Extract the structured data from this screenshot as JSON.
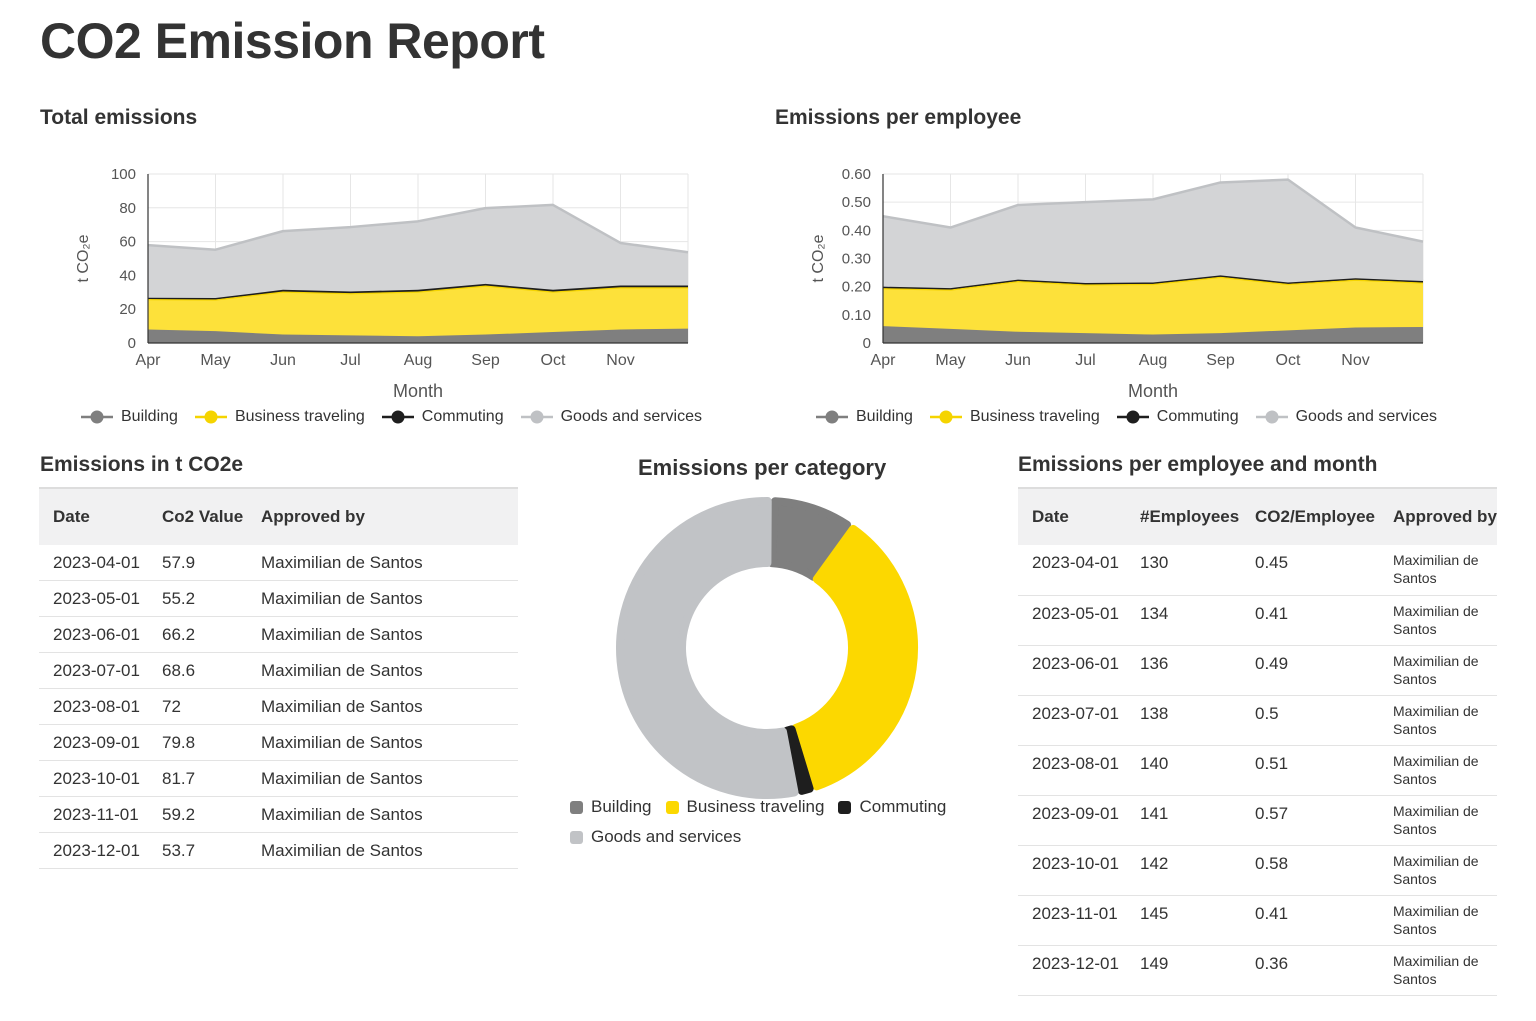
{
  "page": {
    "title": "CO2 Emission Report"
  },
  "colors": {
    "building": "#7f7f7f",
    "business_traveling": "#fde13a",
    "business_line": "#f5d400",
    "commuting": "#1e1e1e",
    "goods": "#d3d4d6",
    "goods_line": "#bfc1c4",
    "grid": "#e6e6e6"
  },
  "charts": {
    "total": {
      "title": "Total emissions"
    },
    "per_employee": {
      "title": "Emissions per employee"
    },
    "donut": {
      "title": "Emissions per category"
    }
  },
  "chart_data": [
    {
      "id": "total",
      "type": "area",
      "stacked": true,
      "title": "Total emissions",
      "xlabel": "Month",
      "ylabel": "t CO₂e",
      "categories": [
        "Apr",
        "May",
        "Jun",
        "Jul",
        "Aug",
        "Sep",
        "Oct",
        "Nov",
        "Dec"
      ],
      "x_tick_labels": [
        "Apr",
        "May",
        "Jun",
        "Jul",
        "Aug",
        "Sep",
        "Oct",
        "Nov"
      ],
      "ylim": [
        0,
        100
      ],
      "yticks": [
        "0",
        "20",
        "40",
        "60",
        "80",
        "100"
      ],
      "series": [
        {
          "name": "Building",
          "key": "building",
          "values": [
            8,
            7,
            5,
            4.5,
            4,
            5,
            6.5,
            8,
            8.5
          ]
        },
        {
          "name": "Business traveling",
          "key": "business_traveling",
          "values": [
            18,
            18.8,
            25.5,
            25,
            26.5,
            29,
            24,
            25,
            24.5
          ]
        },
        {
          "name": "Commuting",
          "key": "commuting",
          "values": [
            0.8,
            0.8,
            1,
            1,
            1,
            1,
            1,
            1,
            1
          ]
        },
        {
          "name": "Goods and services",
          "key": "goods",
          "values": [
            31.1,
            28.6,
            34.7,
            38.1,
            40.5,
            44.8,
            50.2,
            25.2,
            19.7
          ]
        }
      ],
      "legend": [
        "Building",
        "Business traveling",
        "Commuting",
        "Goods and services"
      ]
    },
    {
      "id": "per_employee",
      "type": "area",
      "stacked": true,
      "title": "Emissions per employee",
      "xlabel": "Month",
      "ylabel": "t CO₂e",
      "categories": [
        "Apr",
        "May",
        "Jun",
        "Jul",
        "Aug",
        "Sep",
        "Oct",
        "Nov",
        "Dec"
      ],
      "x_tick_labels": [
        "Apr",
        "May",
        "Jun",
        "Jul",
        "Aug",
        "Sep",
        "Oct",
        "Nov"
      ],
      "ylim": [
        0,
        0.6
      ],
      "yticks": [
        "0",
        "0.10",
        "0.20",
        "0.30",
        "0.40",
        "0.50",
        "0.60"
      ],
      "series": [
        {
          "name": "Building",
          "key": "building",
          "values": [
            0.06,
            0.05,
            0.04,
            0.035,
            0.03,
            0.035,
            0.045,
            0.055,
            0.057
          ]
        },
        {
          "name": "Business traveling",
          "key": "business_traveling",
          "values": [
            0.135,
            0.14,
            0.18,
            0.173,
            0.18,
            0.2,
            0.165,
            0.17,
            0.158
          ]
        },
        {
          "name": "Commuting",
          "key": "commuting",
          "values": [
            0.005,
            0.005,
            0.005,
            0.005,
            0.005,
            0.005,
            0.005,
            0.005,
            0.005
          ]
        },
        {
          "name": "Goods and services",
          "key": "goods",
          "values": [
            0.25,
            0.215,
            0.265,
            0.287,
            0.295,
            0.33,
            0.365,
            0.18,
            0.14
          ]
        }
      ],
      "legend": [
        "Building",
        "Business traveling",
        "Commuting",
        "Goods and services"
      ]
    },
    {
      "id": "category",
      "type": "pie",
      "donut": true,
      "title": "Emissions per category",
      "slices": [
        {
          "name": "Building",
          "key": "building",
          "value": 54
        },
        {
          "name": "Business traveling",
          "key": "business_traveling",
          "value": 210
        },
        {
          "name": "Commuting",
          "key": "commuting",
          "value": 10
        },
        {
          "name": "Goods and services",
          "key": "goods",
          "value": 320
        }
      ],
      "legend": [
        "Building",
        "Business traveling",
        "Commuting",
        "Goods and services"
      ]
    }
  ],
  "table_emissions": {
    "title": "Emissions in t CO2e",
    "headers": [
      "Date",
      "Co2 Value",
      "Approved by"
    ],
    "rows": [
      [
        "2023-04-01",
        "57.9",
        "Maximilian de Santos"
      ],
      [
        "2023-05-01",
        "55.2",
        "Maximilian de Santos"
      ],
      [
        "2023-06-01",
        "66.2",
        "Maximilian de Santos"
      ],
      [
        "2023-07-01",
        "68.6",
        "Maximilian de Santos"
      ],
      [
        "2023-08-01",
        "72",
        "Maximilian de Santos"
      ],
      [
        "2023-09-01",
        "79.8",
        "Maximilian de Santos"
      ],
      [
        "2023-10-01",
        "81.7",
        "Maximilian de Santos"
      ],
      [
        "2023-11-01",
        "59.2",
        "Maximilian de Santos"
      ],
      [
        "2023-12-01",
        "53.7",
        "Maximilian de Santos"
      ]
    ]
  },
  "table_employee": {
    "title": "Emissions per employee and month",
    "headers": [
      "Date",
      "#Employees",
      "CO2/Employee",
      "Approved by"
    ],
    "rows": [
      [
        "2023-04-01",
        "130",
        "0.45",
        "Maximilian de Santos"
      ],
      [
        "2023-05-01",
        "134",
        "0.41",
        "Maximilian de Santos"
      ],
      [
        "2023-06-01",
        "136",
        "0.49",
        "Maximilian de Santos"
      ],
      [
        "2023-07-01",
        "138",
        "0.5",
        "Maximilian de Santos"
      ],
      [
        "2023-08-01",
        "140",
        "0.51",
        "Maximilian de Santos"
      ],
      [
        "2023-09-01",
        "141",
        "0.57",
        "Maximilian de Santos"
      ],
      [
        "2023-10-01",
        "142",
        "0.58",
        "Maximilian de Santos"
      ],
      [
        "2023-11-01",
        "145",
        "0.41",
        "Maximilian de Santos"
      ],
      [
        "2023-12-01",
        "149",
        "0.36",
        "Maximilian de Santos"
      ]
    ]
  }
}
